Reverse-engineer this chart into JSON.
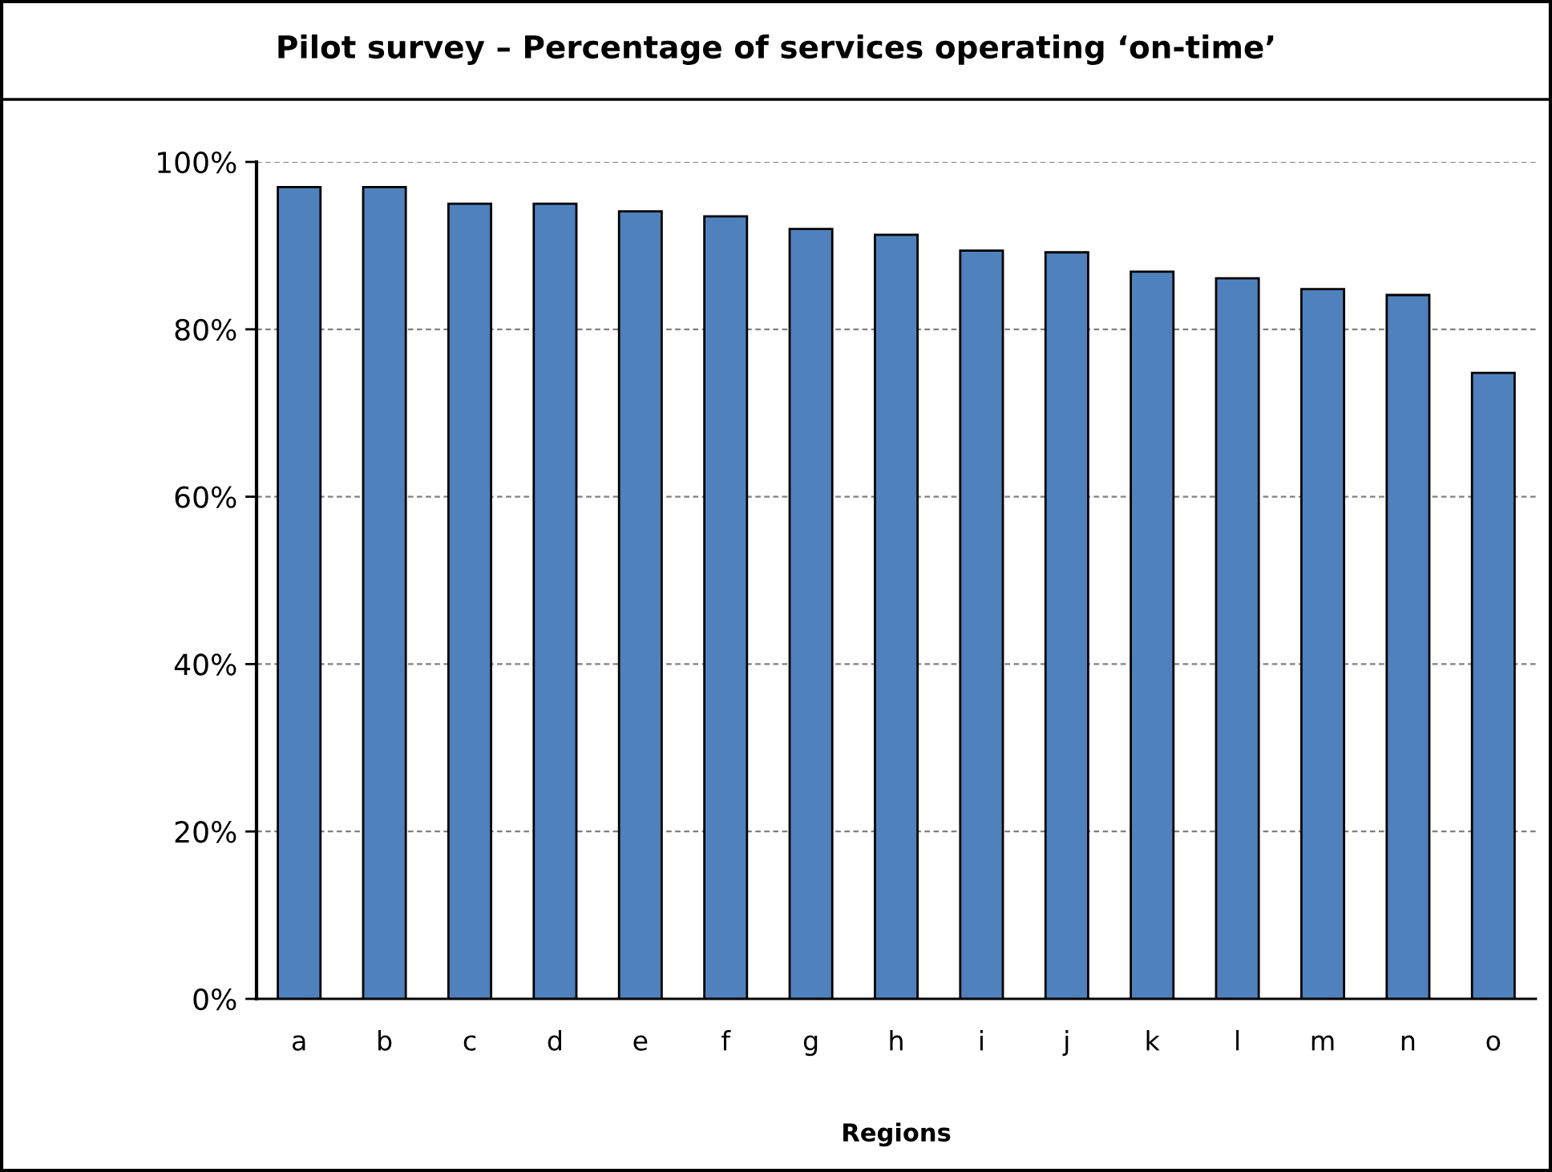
{
  "chart_data": {
    "type": "bar",
    "title": "Pilot survey – Percentage of services operating ‘on-time’",
    "xlabel": "Regions",
    "categories": [
      "a",
      "b",
      "c",
      "d",
      "e",
      "f",
      "g",
      "h",
      "i",
      "j",
      "k",
      "l",
      "m",
      "n",
      "o"
    ],
    "values": [
      97,
      97,
      95,
      95,
      94.1,
      93.5,
      92,
      91.3,
      89.4,
      89.2,
      86.9,
      86.1,
      84.8,
      84.1,
      74.8
    ],
    "color": "#4f81bd",
    "ylim": [
      0,
      100
    ],
    "yticks": [
      {
        "value": 0,
        "label": "0%"
      },
      {
        "value": 20,
        "label": "20%"
      },
      {
        "value": 40,
        "label": "40%"
      },
      {
        "value": 60,
        "label": "60%"
      },
      {
        "value": 80,
        "label": "80%"
      },
      {
        "value": 100,
        "label": "100%"
      }
    ],
    "grid": "y"
  }
}
